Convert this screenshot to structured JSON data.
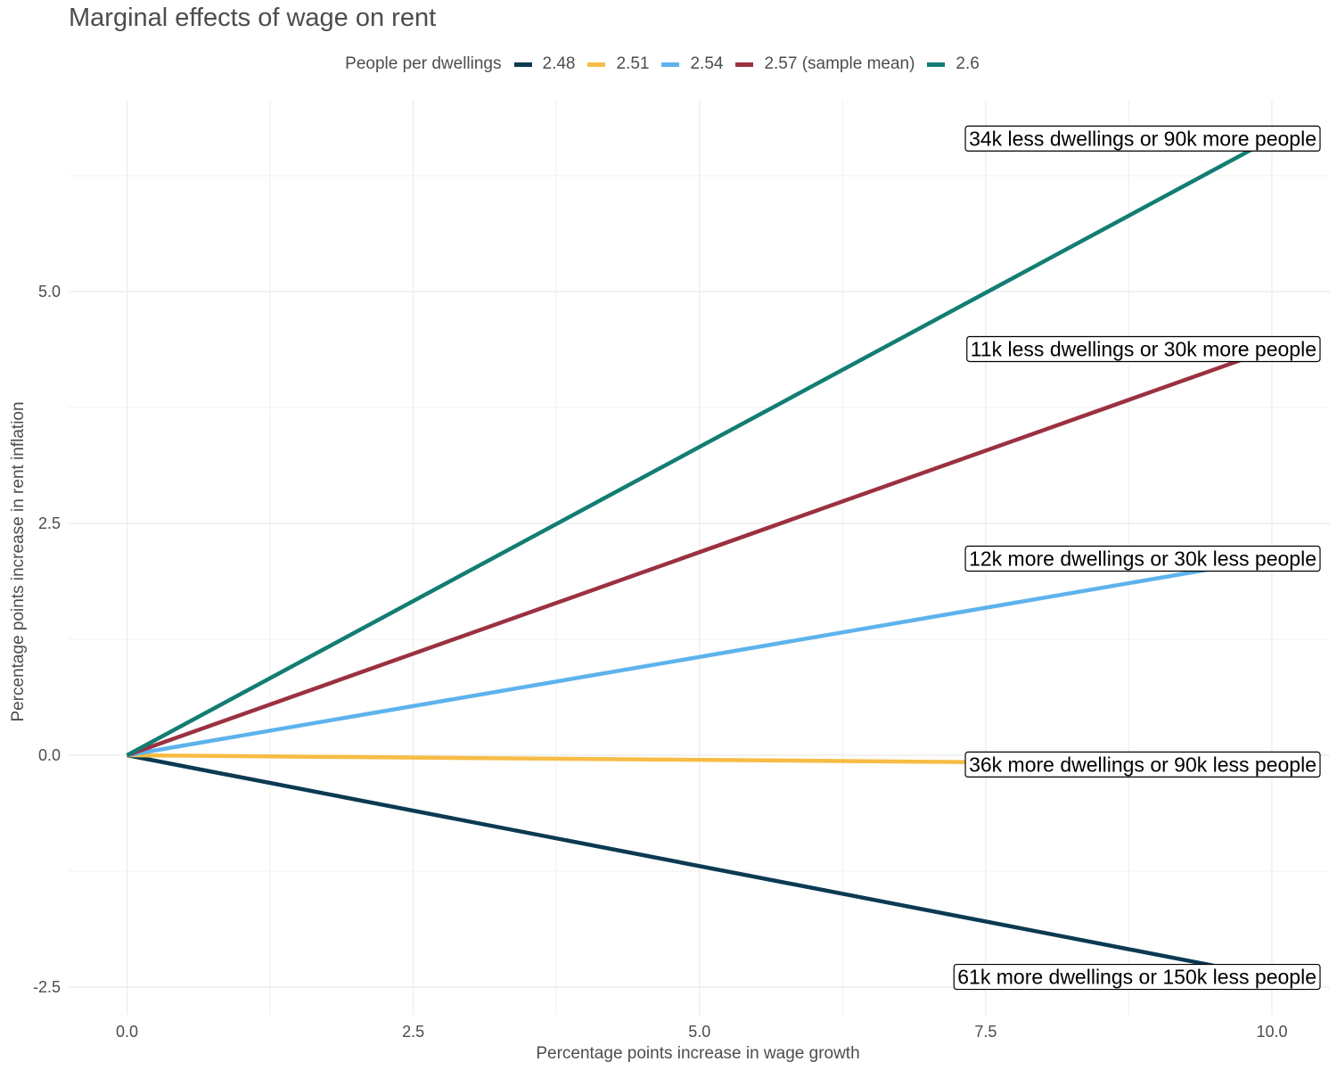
{
  "chart_data": {
    "type": "line",
    "title": "Marginal effects of wage on rent",
    "xlabel": "Percentage points increase in wage growth",
    "ylabel": "Percentage points increase in rent inflation",
    "xlim": [
      -0.5,
      10.5
    ],
    "ylim": [
      -2.62,
      7.0
    ],
    "x_ticks": [
      0.0,
      2.5,
      5.0,
      7.5,
      10.0
    ],
    "x_tick_labels": [
      "0.0",
      "2.5",
      "5.0",
      "7.5",
      "10.0"
    ],
    "y_ticks": [
      -2.5,
      0.0,
      2.5,
      5.0
    ],
    "y_tick_labels": [
      "-2.5",
      "0.0",
      "2.5",
      "5.0"
    ],
    "grid": true,
    "legend": {
      "title": "People per dwellings",
      "placement": "top"
    },
    "series": [
      {
        "name": "2.48",
        "color": "#0b3a52",
        "x": [
          0,
          10
        ],
        "y": [
          0,
          -2.39
        ]
      },
      {
        "name": "2.51",
        "color": "#f7bc45",
        "x": [
          0,
          10
        ],
        "y": [
          0,
          -0.1
        ]
      },
      {
        "name": "2.54",
        "color": "#5db3ec",
        "x": [
          0,
          10
        ],
        "y": [
          0,
          2.12
        ]
      },
      {
        "name": "2.57 (sample mean)",
        "color": "#9b3140",
        "x": [
          0,
          10
        ],
        "y": [
          0,
          4.38
        ]
      },
      {
        "name": "2.6",
        "color": "#127d73",
        "x": [
          0,
          10
        ],
        "y": [
          0,
          6.65
        ]
      }
    ],
    "annotations": [
      {
        "text": "34k less dwellings or 90k more people",
        "series": "2.6",
        "x": 10,
        "y": 6.65
      },
      {
        "text": "11k less dwellings or 30k more people",
        "series": "2.57 (sample mean)",
        "x": 10,
        "y": 4.38
      },
      {
        "text": "12k more dwellings or 30k less people",
        "series": "2.54",
        "x": 10,
        "y": 2.12
      },
      {
        "text": "36k more dwellings or 90k less people",
        "series": "2.51",
        "x": 10,
        "y": -0.1
      },
      {
        "text": "61k more dwellings or 150k less people",
        "series": "2.48",
        "x": 10,
        "y": -2.39
      }
    ]
  }
}
